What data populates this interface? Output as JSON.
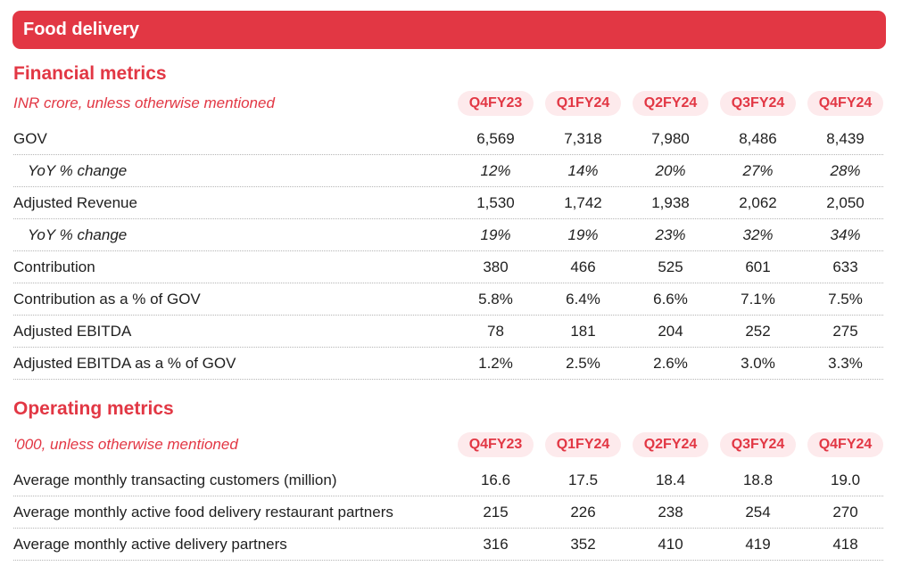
{
  "banner": {
    "title": "Food delivery"
  },
  "financial": {
    "title": "Financial metrics",
    "subtitle": "INR crore, unless otherwise mentioned",
    "periods": [
      "Q4FY23",
      "Q1FY24",
      "Q2FY24",
      "Q3FY24",
      "Q4FY24"
    ],
    "rows": [
      {
        "label": "GOV",
        "values": [
          "6,569",
          "7,318",
          "7,980",
          "8,486",
          "8,439"
        ]
      },
      {
        "label": "YoY % change",
        "values": [
          "12%",
          "14%",
          "20%",
          "27%",
          "28%"
        ]
      },
      {
        "label": "Adjusted Revenue",
        "values": [
          "1,530",
          "1,742",
          "1,938",
          "2,062",
          "2,050"
        ]
      },
      {
        "label": "YoY % change",
        "values": [
          "19%",
          "19%",
          "23%",
          "32%",
          "34%"
        ]
      },
      {
        "label": "Contribution",
        "values": [
          "380",
          "466",
          "525",
          "601",
          "633"
        ]
      },
      {
        "label": "Contribution as a % of GOV",
        "values": [
          "5.8%",
          "6.4%",
          "6.6%",
          "7.1%",
          "7.5%"
        ]
      },
      {
        "label": "Adjusted EBITDA",
        "values": [
          "78",
          "181",
          "204",
          "252",
          "275"
        ]
      },
      {
        "label": "Adjusted EBITDA as a % of GOV",
        "values": [
          "1.2%",
          "2.5%",
          "2.6%",
          "3.0%",
          "3.3%"
        ]
      }
    ]
  },
  "operating": {
    "title": "Operating metrics",
    "subtitle": "'000, unless otherwise mentioned",
    "periods": [
      "Q4FY23",
      "Q1FY24",
      "Q2FY24",
      "Q3FY24",
      "Q4FY24"
    ],
    "rows": [
      {
        "label": "Average monthly transacting customers (million)",
        "values": [
          "16.6",
          "17.5",
          "18.4",
          "18.8",
          "19.0"
        ]
      },
      {
        "label": "Average monthly active food delivery restaurant partners",
        "values": [
          "215",
          "226",
          "238",
          "254",
          "270"
        ]
      },
      {
        "label": "Average monthly active delivery partners",
        "values": [
          "316",
          "352",
          "410",
          "419",
          "418"
        ]
      }
    ]
  },
  "colors": {
    "accent": "#e23744",
    "pill_bg": "#fdeaec"
  }
}
